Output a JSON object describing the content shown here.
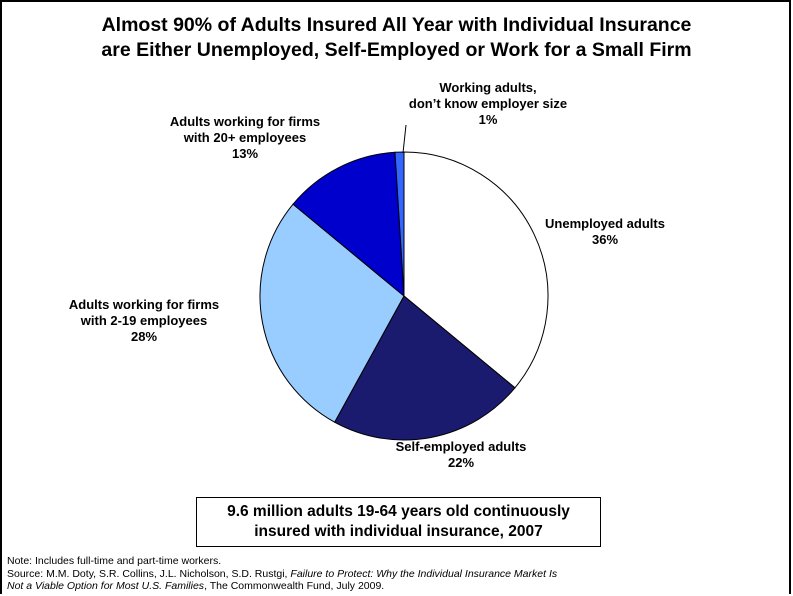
{
  "title": {
    "line1": "Almost 90% of Adults Insured All Year with Individual Insurance",
    "line2": "are Either Unemployed, Self-Employed or Work for a Small Firm"
  },
  "chart_data": {
    "type": "pie",
    "slices": [
      {
        "label_lines": [
          "Unemployed adults"
        ],
        "pct_label": "36%",
        "value": 36,
        "color": "#ffffff"
      },
      {
        "label_lines": [
          "Self-employed adults"
        ],
        "pct_label": "22%",
        "value": 22,
        "color": "#1a1a6e"
      },
      {
        "label_lines": [
          "Adults working for firms",
          "with 2-19 employees"
        ],
        "pct_label": "28%",
        "value": 28,
        "color": "#99ccff"
      },
      {
        "label_lines": [
          "Adults working for firms",
          "with 20+ employees"
        ],
        "pct_label": "13%",
        "value": 13,
        "color": "#0000cc"
      },
      {
        "label_lines": [
          "Working adults,",
          "don’t know employer size"
        ],
        "pct_label": "1%",
        "value": 1,
        "color": "#3366ff"
      }
    ]
  },
  "summary": {
    "line1": "9.6 million adults 19-64 years old continuously",
    "line2": "insured with individual insurance, 2007"
  },
  "footnotes": {
    "note": "Note: Includes full-time and part-time workers.",
    "source_prefix": "Source: M.M. Doty, S.R. Collins, J.L. Nicholson, S.D. Rustgi, ",
    "source_title_1": "Failure to Protect: Why the Individual Insurance Market Is",
    "source_title_2": "Not a Viable Option for Most U.S. Families",
    "source_suffix": ", The Commonwealth Fund, July 2009."
  }
}
